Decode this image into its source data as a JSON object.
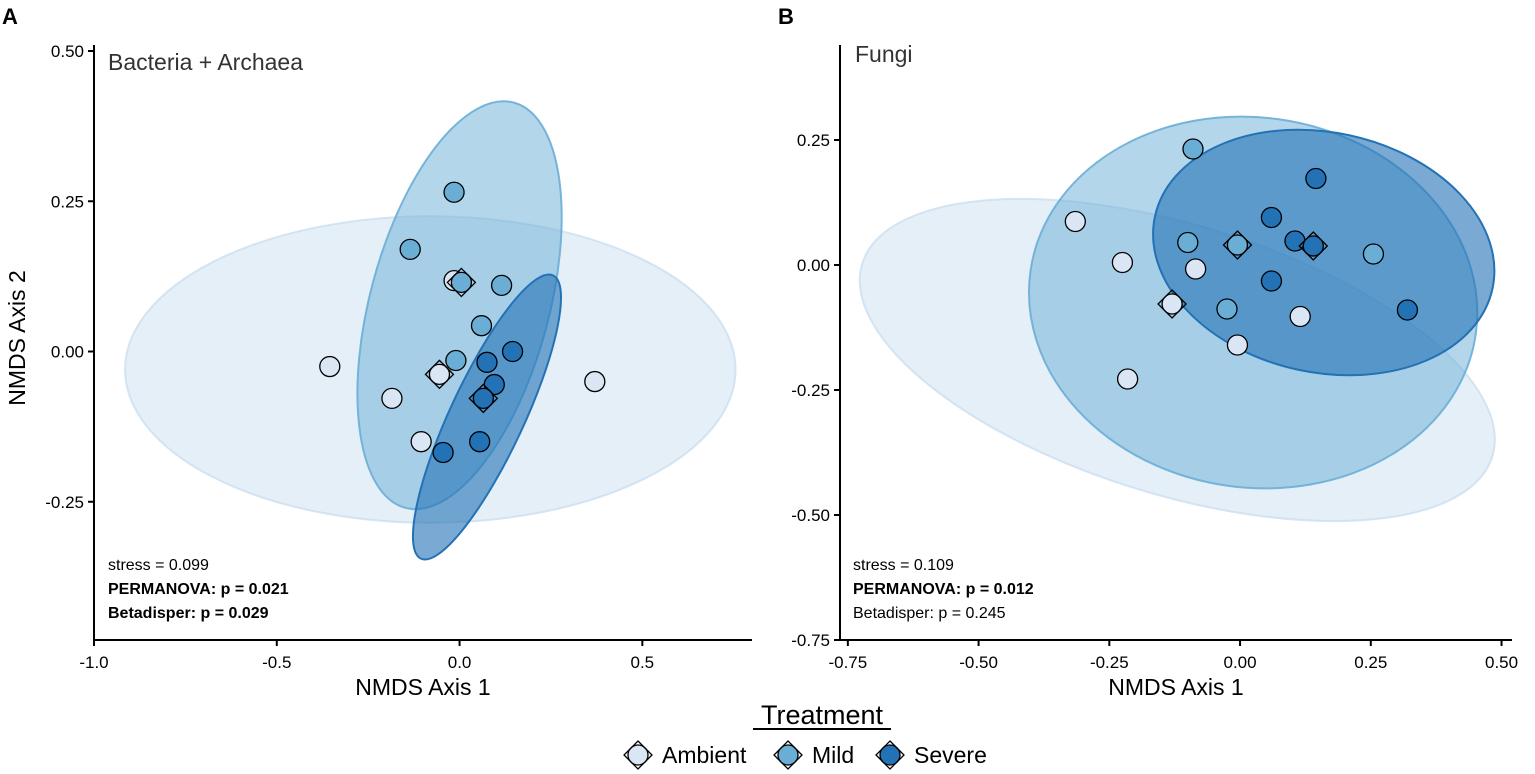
{
  "colors": {
    "ambient": "#dbe6f5",
    "mild": "#6aaed6",
    "severe": "#2272b5",
    "ambient_ellipse": "#c6dbef",
    "mild_ellipse": "#6aaed6",
    "severe_ellipse": "#2272b5"
  },
  "legend": {
    "title": "Treatment",
    "items": [
      {
        "key": "ambient",
        "label": "Ambient"
      },
      {
        "key": "mild",
        "label": "Mild"
      },
      {
        "key": "severe",
        "label": "Severe"
      }
    ]
  },
  "chart_data": [
    {
      "type": "scatter",
      "panel_label": "A",
      "title": "Bacteria + Archaea",
      "xlabel": "NMDS Axis 1",
      "ylabel": "NMDS Axis 2",
      "xlim": [
        -1.0,
        0.8
      ],
      "ylim": [
        -0.48,
        0.51
      ],
      "xticks": [
        -1.0,
        -0.5,
        0.0,
        0.5
      ],
      "xtick_labels": [
        "-1.0",
        "-0.5",
        "0.0",
        "0.5"
      ],
      "yticks": [
        -0.25,
        0.0,
        0.25,
        0.5
      ],
      "ytick_labels": [
        "-0.25",
        "0.00",
        "0.25",
        "0.50"
      ],
      "annotations": [
        {
          "text": "stress = 0.099",
          "bold": false
        },
        {
          "text": "PERMANOVA: p = 0.021",
          "bold": true
        },
        {
          "text": "Betadisper: p = 0.029",
          "bold": true
        }
      ],
      "ellipses": [
        {
          "group": "ambient",
          "cx": -0.08,
          "cy": -0.03,
          "rx": 0.835,
          "ry": 0.255,
          "angle": 0
        },
        {
          "group": "mild",
          "cx": 0.0,
          "cy": 0.077,
          "rx": 0.245,
          "ry": 0.349,
          "angle": 15
        },
        {
          "group": "severe",
          "cx": 0.075,
          "cy": -0.109,
          "rx": 0.101,
          "ry": 0.26,
          "angle": 25
        }
      ],
      "series": [
        {
          "name": "Ambient",
          "group": "ambient",
          "points": [
            {
              "x": -0.355,
              "y": -0.025
            },
            {
              "x": -0.185,
              "y": -0.078
            },
            {
              "x": -0.105,
              "y": -0.15
            },
            {
              "x": -0.015,
              "y": 0.118
            },
            {
              "x": 0.37,
              "y": -0.05
            }
          ]
        },
        {
          "name": "Mild",
          "group": "mild",
          "points": [
            {
              "x": -0.015,
              "y": 0.265
            },
            {
              "x": -0.135,
              "y": 0.17
            },
            {
              "x": 0.115,
              "y": 0.11
            },
            {
              "x": 0.06,
              "y": 0.043
            },
            {
              "x": -0.01,
              "y": -0.015
            }
          ]
        },
        {
          "name": "Severe",
          "group": "severe",
          "points": [
            {
              "x": 0.145,
              "y": 0.0
            },
            {
              "x": 0.075,
              "y": -0.018
            },
            {
              "x": 0.095,
              "y": -0.055
            },
            {
              "x": -0.045,
              "y": -0.168
            },
            {
              "x": 0.055,
              "y": -0.15
            }
          ]
        }
      ],
      "centroids": [
        {
          "group": "ambient",
          "x": -0.055,
          "y": -0.038
        },
        {
          "group": "mild",
          "x": 0.005,
          "y": 0.115
        },
        {
          "group": "severe",
          "x": 0.065,
          "y": -0.078
        }
      ]
    },
    {
      "type": "scatter",
      "panel_label": "B",
      "title": "Fungi",
      "xlabel": "NMDS Axis 1",
      "ylabel": "",
      "xlim": [
        -0.765,
        0.52
      ],
      "ylim": [
        -0.75,
        0.44
      ],
      "xticks": [
        -0.75,
        -0.5,
        -0.25,
        0.0,
        0.25,
        0.5
      ],
      "xtick_labels": [
        "-0.75",
        "-0.50",
        "-0.25",
        "0.00",
        "0.25",
        "0.50"
      ],
      "yticks": [
        -0.75,
        -0.5,
        -0.25,
        0.0,
        0.25
      ],
      "ytick_labels": [
        "-0.75",
        "-0.50",
        "-0.25",
        "0.00",
        "0.25"
      ],
      "annotations": [
        {
          "text": "stress = 0.109",
          "bold": false
        },
        {
          "text": "PERMANOVA: p = 0.012",
          "bold": true
        },
        {
          "text": "Betadisper: p = 0.245",
          "bold": false
        }
      ],
      "ellipses": [
        {
          "group": "ambient",
          "cx": -0.12,
          "cy": -0.19,
          "rx": 0.63,
          "ry": 0.27,
          "angle": 17
        },
        {
          "group": "mild",
          "cx": 0.025,
          "cy": -0.075,
          "rx": 0.43,
          "ry": 0.37,
          "angle": 8
        },
        {
          "group": "severe",
          "cx": 0.16,
          "cy": 0.025,
          "rx": 0.33,
          "ry": 0.24,
          "angle": 12
        }
      ],
      "series": [
        {
          "name": "Ambient",
          "group": "ambient",
          "points": [
            {
              "x": -0.315,
              "y": 0.087
            },
            {
              "x": -0.225,
              "y": 0.005
            },
            {
              "x": -0.215,
              "y": -0.228
            },
            {
              "x": -0.085,
              "y": -0.008
            },
            {
              "x": -0.005,
              "y": -0.16
            },
            {
              "x": 0.115,
              "y": -0.103
            }
          ]
        },
        {
          "name": "Mild",
          "group": "mild",
          "points": [
            {
              "x": -0.09,
              "y": 0.232
            },
            {
              "x": -0.1,
              "y": 0.045
            },
            {
              "x": -0.025,
              "y": -0.088
            },
            {
              "x": 0.255,
              "y": 0.022
            }
          ]
        },
        {
          "name": "Severe",
          "group": "severe",
          "points": [
            {
              "x": 0.145,
              "y": 0.173
            },
            {
              "x": 0.06,
              "y": 0.095
            },
            {
              "x": 0.105,
              "y": 0.048
            },
            {
              "x": 0.06,
              "y": -0.032
            },
            {
              "x": 0.32,
              "y": -0.09
            }
          ]
        }
      ],
      "centroids": [
        {
          "group": "ambient",
          "x": -0.13,
          "y": -0.078
        },
        {
          "group": "mild",
          "x": -0.005,
          "y": 0.04
        },
        {
          "group": "severe",
          "x": 0.14,
          "y": 0.038
        }
      ]
    }
  ]
}
